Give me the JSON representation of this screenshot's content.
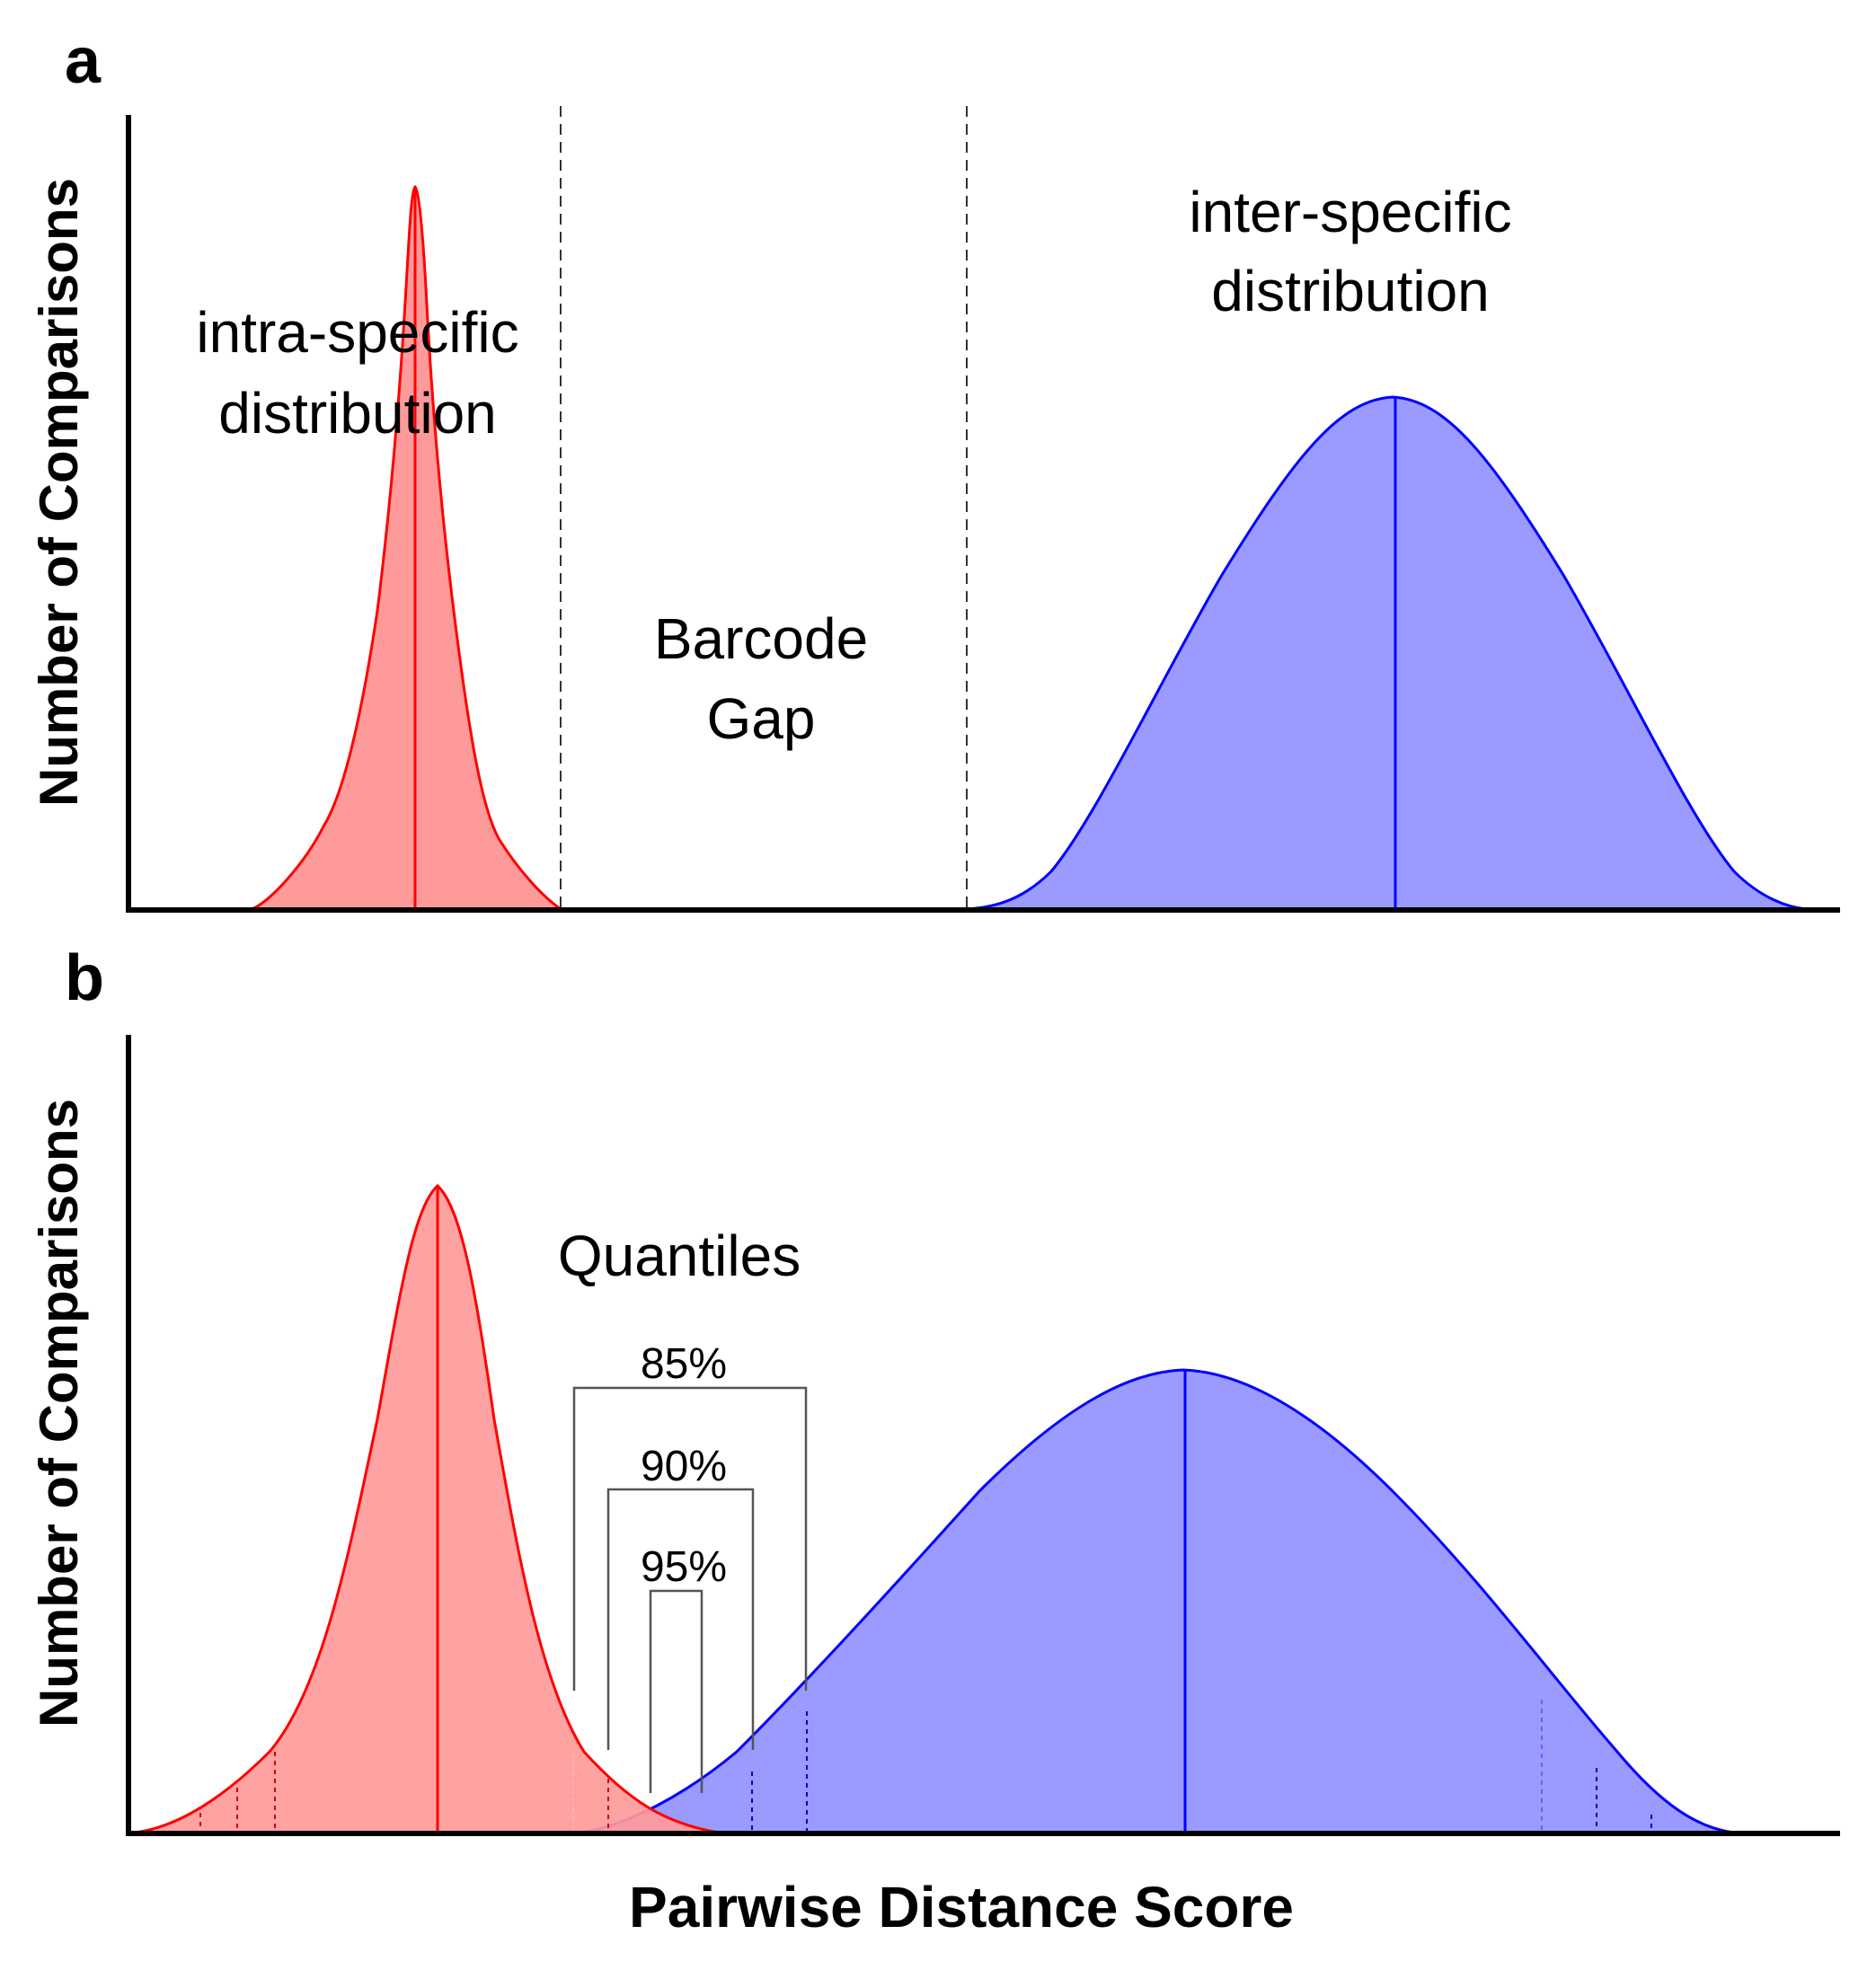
{
  "figure": {
    "panel_a": {
      "letter": "a",
      "ylabel": "Number of Comparisons",
      "intra_label": [
        "intra-specific",
        "distribution"
      ],
      "inter_label": [
        "inter-specific",
        "distribution"
      ],
      "gap_label": [
        "Barcode",
        "Gap"
      ]
    },
    "panel_b": {
      "letter": "b",
      "ylabel": "Number of Comparisons",
      "quantiles_title": "Quantiles",
      "quantiles": [
        "85%",
        "90%",
        "95%"
      ]
    },
    "xlabel": "Pairwise Distance Score"
  },
  "colors": {
    "intra_stroke": "#ff0000",
    "intra_fill": "#ff9a9a",
    "inter_stroke": "#0000ff",
    "inter_fill": "#9a9aff",
    "axis": "#000000"
  }
}
